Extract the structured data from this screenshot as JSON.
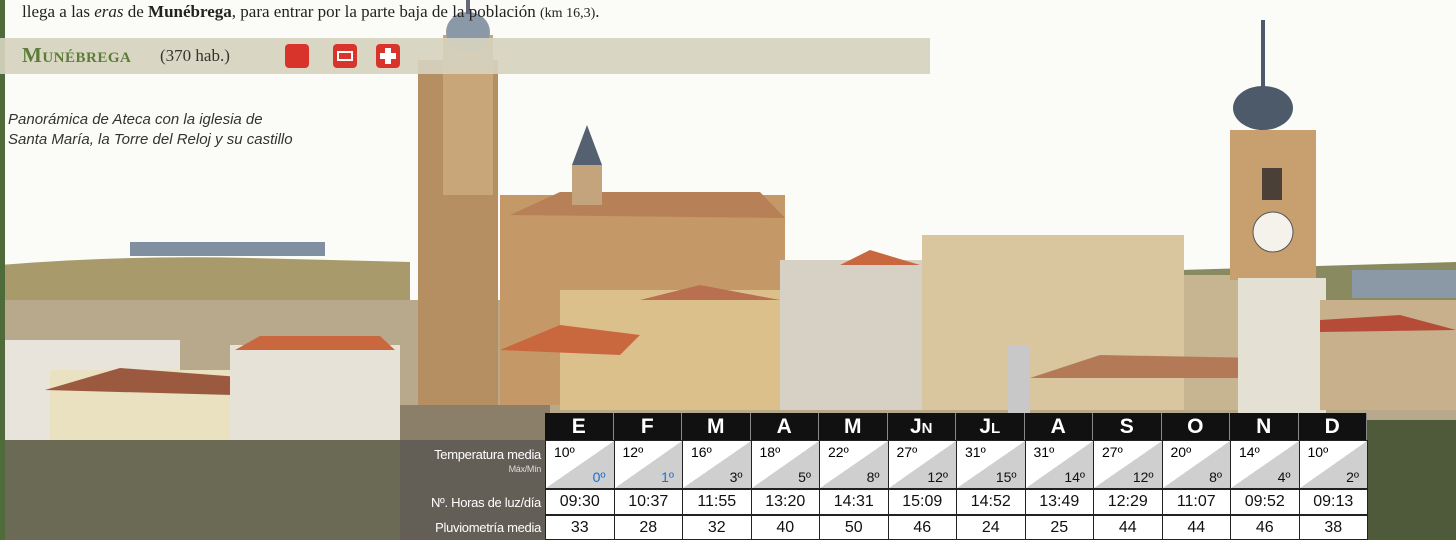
{
  "intro": {
    "parts": [
      "llega a las ",
      "eras",
      " de ",
      "Munébrega",
      ", para entrar por la parte baja de la población ",
      "(km 16,3)",
      "."
    ]
  },
  "section": {
    "title": "Munébrega",
    "population": "(370 hab.)"
  },
  "caption": {
    "lines": [
      "Panorámica de Ateca con la iglesia de",
      "Santa María, la Torre del Reloj y su castillo"
    ]
  },
  "climate_table": {
    "months": [
      "E",
      "F",
      "M",
      "A",
      "M",
      "Jn",
      "Jl",
      "A",
      "S",
      "O",
      "N",
      "D"
    ],
    "row_labels": {
      "temperature": "Temperatura media",
      "temperature_sub": "Máx/Mín",
      "daylight": "Nº. Horas de luz/día",
      "rainfall": "Pluviometría media"
    },
    "temp_max": [
      "10º",
      "12º",
      "16º",
      "18º",
      "22º",
      "27º",
      "31º",
      "31º",
      "27º",
      "20º",
      "14º",
      "10º"
    ],
    "temp_min": [
      "0º",
      "1º",
      "3º",
      "5º",
      "8º",
      "12º",
      "15º",
      "14º",
      "12º",
      "8º",
      "4º",
      "2º"
    ],
    "daylight": [
      "09:30",
      "10:37",
      "11:55",
      "13:20",
      "14:31",
      "15:09",
      "14:52",
      "13:49",
      "12:29",
      "11:07",
      "09:52",
      "09:13"
    ],
    "rainfall": [
      "33",
      "28",
      "32",
      "40",
      "50",
      "46",
      "24",
      "25",
      "44",
      "44",
      "46",
      "38"
    ]
  }
}
